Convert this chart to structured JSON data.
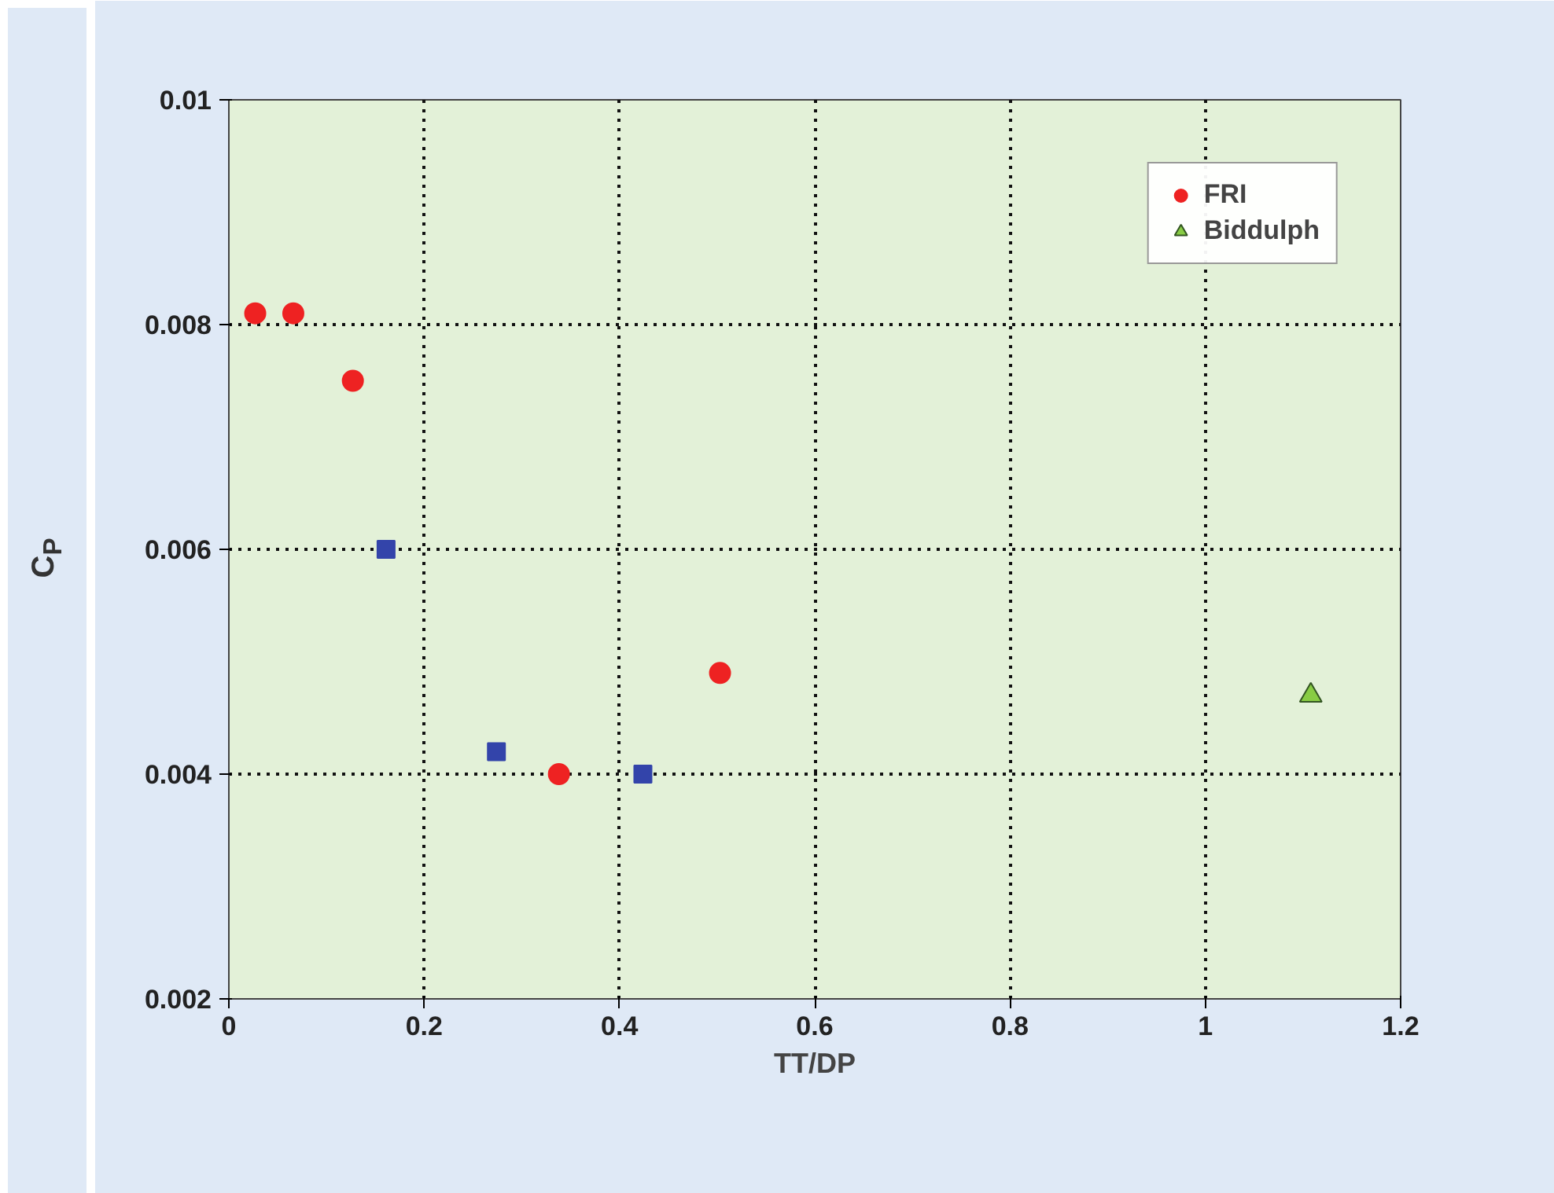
{
  "chart_data": {
    "type": "scatter",
    "xlabel": "TT/DP",
    "ylabel": "C$_{P}$",
    "xlim": [
      0,
      1.2
    ],
    "ylim": [
      0.002,
      0.01
    ],
    "xticks": [
      0,
      0.2,
      0.4,
      0.6,
      0.8,
      1,
      1.2
    ],
    "yticks": [
      0.002,
      0.004,
      0.006,
      0.008,
      0.01
    ],
    "grid": true,
    "legend": "top right",
    "series": [
      {
        "color": "#3344aa",
        "marker": "square",
        "x": [
          0.161,
          0.274,
          0.424
        ],
        "values": [
          0.006,
          0.0042,
          0.004
        ]
      },
      {
        "name": "FRI",
        "color": "#ee2222",
        "marker": "circle",
        "x": [
          0.027,
          0.066,
          0.127,
          0.338,
          0.503
        ],
        "values": [
          0.0081,
          0.0081,
          0.0075,
          0.004,
          0.0049
        ]
      },
      {
        "name": "Biddulph",
        "color": "#88cc44",
        "marker": "triangle",
        "x": [
          1.108
        ],
        "values": [
          0.0047
        ]
      }
    ]
  }
}
